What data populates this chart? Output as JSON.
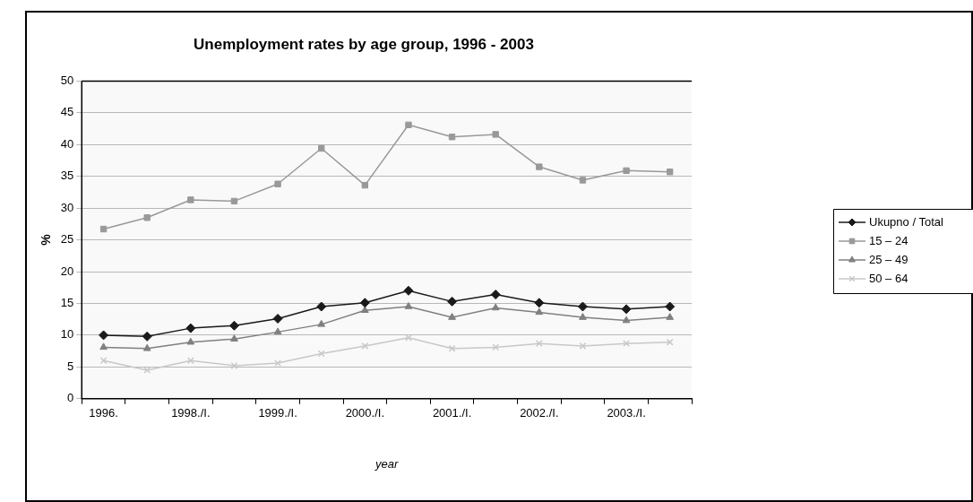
{
  "chart_data": {
    "type": "line",
    "title": "Unemployment rates by age group, 1996 - 2003",
    "xlabel": "year",
    "ylabel": "%",
    "categories": [
      "1996.",
      null,
      "1998./I.",
      null,
      "1999./I.",
      null,
      "2000./I.",
      null,
      "2001./I.",
      null,
      "2002./I.",
      null,
      "2003./I.",
      null
    ],
    "series": [
      {
        "name": "Ukupno / Total",
        "color": "#1a1a1a",
        "marker": "diamond",
        "values": [
          10.0,
          9.8,
          11.1,
          11.5,
          12.6,
          14.5,
          15.1,
          17.0,
          15.3,
          16.4,
          15.1,
          14.5,
          14.1,
          14.5
        ]
      },
      {
        "name": "15 – 24",
        "color": "#999999",
        "marker": "square",
        "values": [
          26.7,
          28.5,
          31.3,
          31.1,
          33.8,
          39.4,
          33.6,
          43.1,
          41.2,
          41.6,
          36.5,
          34.4,
          35.9,
          35.7
        ]
      },
      {
        "name": "25 – 49",
        "color": "#808080",
        "marker": "triangle",
        "values": [
          8.1,
          7.9,
          8.9,
          9.4,
          10.5,
          11.7,
          13.9,
          14.5,
          12.8,
          14.3,
          13.6,
          12.8,
          12.3,
          12.8
        ]
      },
      {
        "name": "50 – 64",
        "color": "#c8c8c8",
        "marker": "cross",
        "values": [
          6.0,
          4.5,
          6.0,
          5.2,
          5.6,
          7.1,
          8.3,
          9.6,
          7.9,
          8.1,
          8.7,
          8.3,
          8.7,
          8.9
        ]
      }
    ],
    "ylim": [
      0,
      50
    ],
    "yticks": [
      0,
      5,
      10,
      15,
      20,
      25,
      30,
      35,
      40,
      45,
      50
    ],
    "grid": "y",
    "legend": "right",
    "line_style": "solid"
  }
}
